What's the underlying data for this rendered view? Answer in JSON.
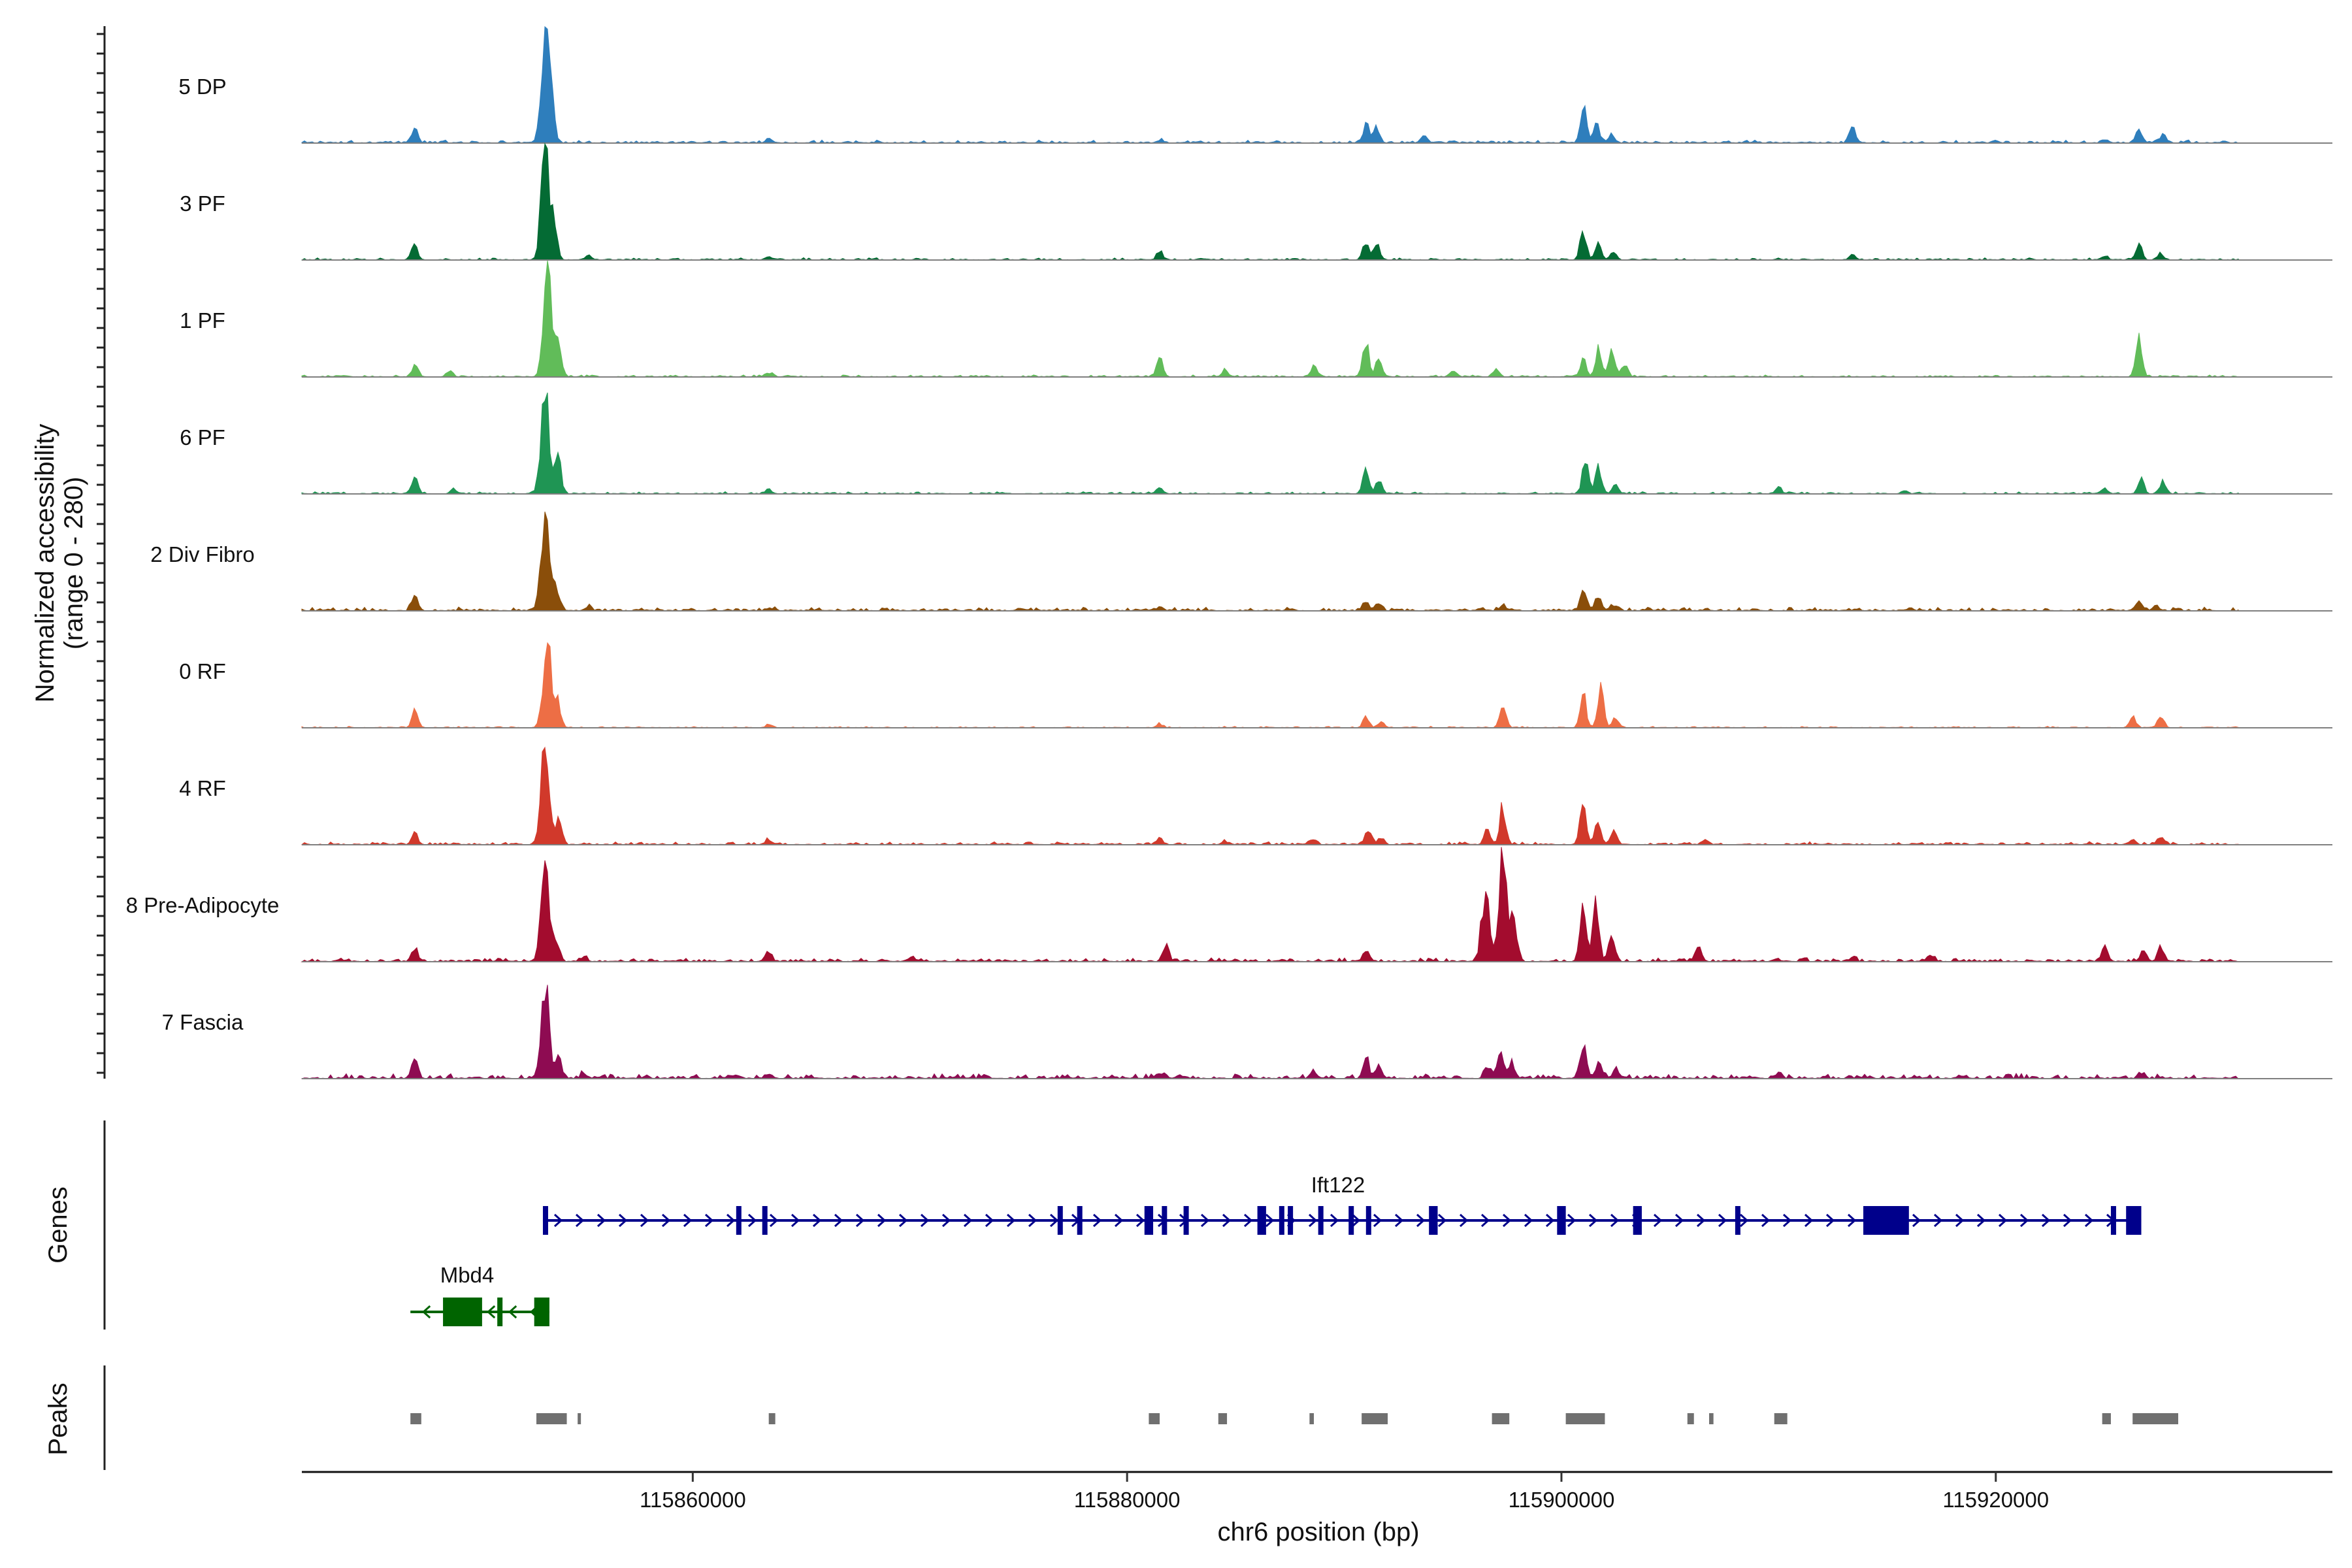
{
  "chart_data": {
    "type": "area",
    "title": "",
    "ylabel": "Normalized accessibility\n(range 0 - 280)",
    "xlabel": "chr6 position (bp)",
    "xlim": [
      115842000,
      115935500
    ],
    "ylim": [
      0,
      280
    ],
    "x_ticks": [
      115860000,
      115880000,
      115900000,
      115920000
    ],
    "x_tick_labels": [
      "115860000",
      "115880000",
      "115900000",
      "115920000"
    ],
    "tracks": [
      {
        "name": "5 DP",
        "color": "#2e7ebc",
        "bg": 4,
        "peaks": [
          [
            115847200,
            40
          ],
          [
            115853200,
            285
          ],
          [
            115853500,
            120
          ],
          [
            115863500,
            12
          ],
          [
            115881500,
            8
          ],
          [
            115891000,
            45
          ],
          [
            115891500,
            40
          ],
          [
            115893700,
            16
          ],
          [
            115901000,
            90
          ],
          [
            115901600,
            55
          ],
          [
            115902300,
            20
          ],
          [
            115913400,
            42
          ],
          [
            115925000,
            8
          ],
          [
            115926600,
            30
          ],
          [
            115927700,
            20
          ]
        ]
      },
      {
        "name": "3 PF",
        "color": "#046b34",
        "bg": 3,
        "peaks": [
          [
            115847200,
            35
          ],
          [
            115853200,
            270
          ],
          [
            115853600,
            100
          ],
          [
            115855200,
            10
          ],
          [
            115863500,
            10
          ],
          [
            115881500,
            20
          ],
          [
            115891000,
            45
          ],
          [
            115891500,
            35
          ],
          [
            115901000,
            70
          ],
          [
            115901700,
            45
          ],
          [
            115902400,
            18
          ],
          [
            115913400,
            12
          ],
          [
            115925000,
            10
          ],
          [
            115926600,
            35
          ],
          [
            115927600,
            15
          ]
        ]
      },
      {
        "name": "1 PF",
        "color": "#61bc59",
        "bg": 3,
        "peaks": [
          [
            115847200,
            30
          ],
          [
            115848800,
            16
          ],
          [
            115853300,
            260
          ],
          [
            115853800,
            80
          ],
          [
            115863500,
            10
          ],
          [
            115881500,
            45
          ],
          [
            115884500,
            15
          ],
          [
            115888600,
            28
          ],
          [
            115891000,
            80
          ],
          [
            115891600,
            50
          ],
          [
            115895000,
            14
          ],
          [
            115897000,
            16
          ],
          [
            115901000,
            45
          ],
          [
            115901700,
            65
          ],
          [
            115902300,
            60
          ],
          [
            115902900,
            28
          ],
          [
            115926600,
            90
          ]
        ]
      },
      {
        "name": "6 PF",
        "color": "#1f9554",
        "bg": 3,
        "peaks": [
          [
            115847200,
            42
          ],
          [
            115849000,
            12
          ],
          [
            115853200,
            265
          ],
          [
            115853800,
            90
          ],
          [
            115863500,
            12
          ],
          [
            115881500,
            15
          ],
          [
            115891000,
            60
          ],
          [
            115891600,
            35
          ],
          [
            115901100,
            80
          ],
          [
            115901700,
            65
          ],
          [
            115902500,
            25
          ],
          [
            115910000,
            14
          ],
          [
            115915800,
            10
          ],
          [
            115925000,
            14
          ],
          [
            115926700,
            35
          ],
          [
            115927700,
            30
          ]
        ]
      },
      {
        "name": "2 Div Fibro",
        "color": "#8a4e0a",
        "bg": 5,
        "peaks": [
          [
            115847200,
            42
          ],
          [
            115853200,
            235
          ],
          [
            115853700,
            60
          ],
          [
            115855200,
            10
          ],
          [
            115863500,
            8
          ],
          [
            115881500,
            10
          ],
          [
            115891000,
            25
          ],
          [
            115891600,
            18
          ],
          [
            115897300,
            12
          ],
          [
            115901000,
            55
          ],
          [
            115901700,
            35
          ],
          [
            115902400,
            14
          ],
          [
            115926600,
            18
          ],
          [
            115927400,
            12
          ]
        ]
      },
      {
        "name": "0 RF",
        "color": "#ed6e45",
        "bg": 2,
        "peaks": [
          [
            115847200,
            40
          ],
          [
            115853300,
            205
          ],
          [
            115853800,
            60
          ],
          [
            115863500,
            8
          ],
          [
            115881500,
            10
          ],
          [
            115891000,
            25
          ],
          [
            115891700,
            14
          ],
          [
            115897300,
            60
          ],
          [
            115901000,
            85
          ],
          [
            115901800,
            95
          ],
          [
            115902500,
            25
          ],
          [
            115926300,
            25
          ],
          [
            115927600,
            30
          ]
        ]
      },
      {
        "name": "4 RF",
        "color": "#d1392b",
        "bg": 4,
        "peaks": [
          [
            115847200,
            30
          ],
          [
            115853200,
            235
          ],
          [
            115853800,
            60
          ],
          [
            115863500,
            14
          ],
          [
            115881500,
            15
          ],
          [
            115884500,
            10
          ],
          [
            115888600,
            14
          ],
          [
            115891100,
            40
          ],
          [
            115891700,
            15
          ],
          [
            115896600,
            40
          ],
          [
            115897300,
            95
          ],
          [
            115901000,
            100
          ],
          [
            115901700,
            55
          ],
          [
            115902400,
            35
          ],
          [
            115906600,
            14
          ],
          [
            115926300,
            14
          ],
          [
            115927600,
            18
          ]
        ]
      },
      {
        "name": "8 Pre-Adipocyte",
        "color": "#a30c2e",
        "bg": 5,
        "peaks": [
          [
            115847200,
            35
          ],
          [
            115853200,
            210
          ],
          [
            115853700,
            60
          ],
          [
            115855000,
            10
          ],
          [
            115863500,
            22
          ],
          [
            115870000,
            10
          ],
          [
            115881800,
            40
          ],
          [
            115891000,
            30
          ],
          [
            115896500,
            160
          ],
          [
            115897300,
            240
          ],
          [
            115897800,
            120
          ],
          [
            115901000,
            120
          ],
          [
            115901600,
            145
          ],
          [
            115902300,
            70
          ],
          [
            115906300,
            35
          ],
          [
            115913400,
            12
          ],
          [
            115917000,
            18
          ],
          [
            115925000,
            35
          ],
          [
            115926800,
            25
          ],
          [
            115927600,
            35
          ]
        ]
      },
      {
        "name": "7 Fascia",
        "color": "#8e0b52",
        "bg": 7,
        "peaks": [
          [
            115847200,
            50
          ],
          [
            115853200,
            235
          ],
          [
            115853800,
            60
          ],
          [
            115855000,
            10
          ],
          [
            115863500,
            10
          ],
          [
            115881500,
            10
          ],
          [
            115888600,
            14
          ],
          [
            115891000,
            45
          ],
          [
            115891600,
            25
          ],
          [
            115896600,
            30
          ],
          [
            115897200,
            70
          ],
          [
            115897700,
            35
          ],
          [
            115901000,
            90
          ],
          [
            115901700,
            40
          ],
          [
            115902500,
            18
          ],
          [
            115910000,
            14
          ],
          [
            115926700,
            14
          ]
        ]
      }
    ],
    "genes": [
      {
        "name": "Ift122",
        "strand": "+",
        "color": "#00008b",
        "start": 115853100,
        "end": 115926700,
        "exons": [
          [
            115853100,
            115853300
          ],
          [
            115862000,
            115862200
          ],
          [
            115863200,
            115863300
          ],
          [
            115876800,
            115876900
          ],
          [
            115877700,
            115877800
          ],
          [
            115880800,
            115881200
          ],
          [
            115881600,
            115881800
          ],
          [
            115882600,
            115882800
          ],
          [
            115886000,
            115886400
          ],
          [
            115887000,
            115887200
          ],
          [
            115887400,
            115887600
          ],
          [
            115888800,
            115888900
          ],
          [
            115890200,
            115890300
          ],
          [
            115891000,
            115891100
          ],
          [
            115893900,
            115894300
          ],
          [
            115899800,
            115900200
          ],
          [
            115903300,
            115903700
          ],
          [
            115908000,
            115908100
          ],
          [
            115913900,
            115916000
          ],
          [
            115925300,
            115925400
          ],
          [
            115926000,
            115926700
          ]
        ]
      },
      {
        "name": "Mbd4",
        "strand": "-",
        "color": "#006400",
        "start": 115847000,
        "end": 115853400,
        "exons": [
          [
            115848500,
            115850300
          ],
          [
            115851000,
            115851200
          ],
          [
            115852700,
            115853400
          ]
        ]
      }
    ],
    "peaks_track": [
      [
        115847000,
        115847500
      ],
      [
        115852800,
        115854200
      ],
      [
        115854700,
        115854800
      ],
      [
        115863500,
        115863800
      ],
      [
        115881000,
        115881500
      ],
      [
        115884200,
        115884600
      ],
      [
        115888400,
        115888600
      ],
      [
        115890800,
        115892000
      ],
      [
        115896800,
        115897600
      ],
      [
        115900200,
        115902000
      ],
      [
        115905800,
        115906100
      ],
      [
        115906800,
        115907000
      ],
      [
        115909800,
        115910400
      ],
      [
        115924900,
        115925300
      ],
      [
        115926300,
        115928400
      ]
    ]
  }
}
